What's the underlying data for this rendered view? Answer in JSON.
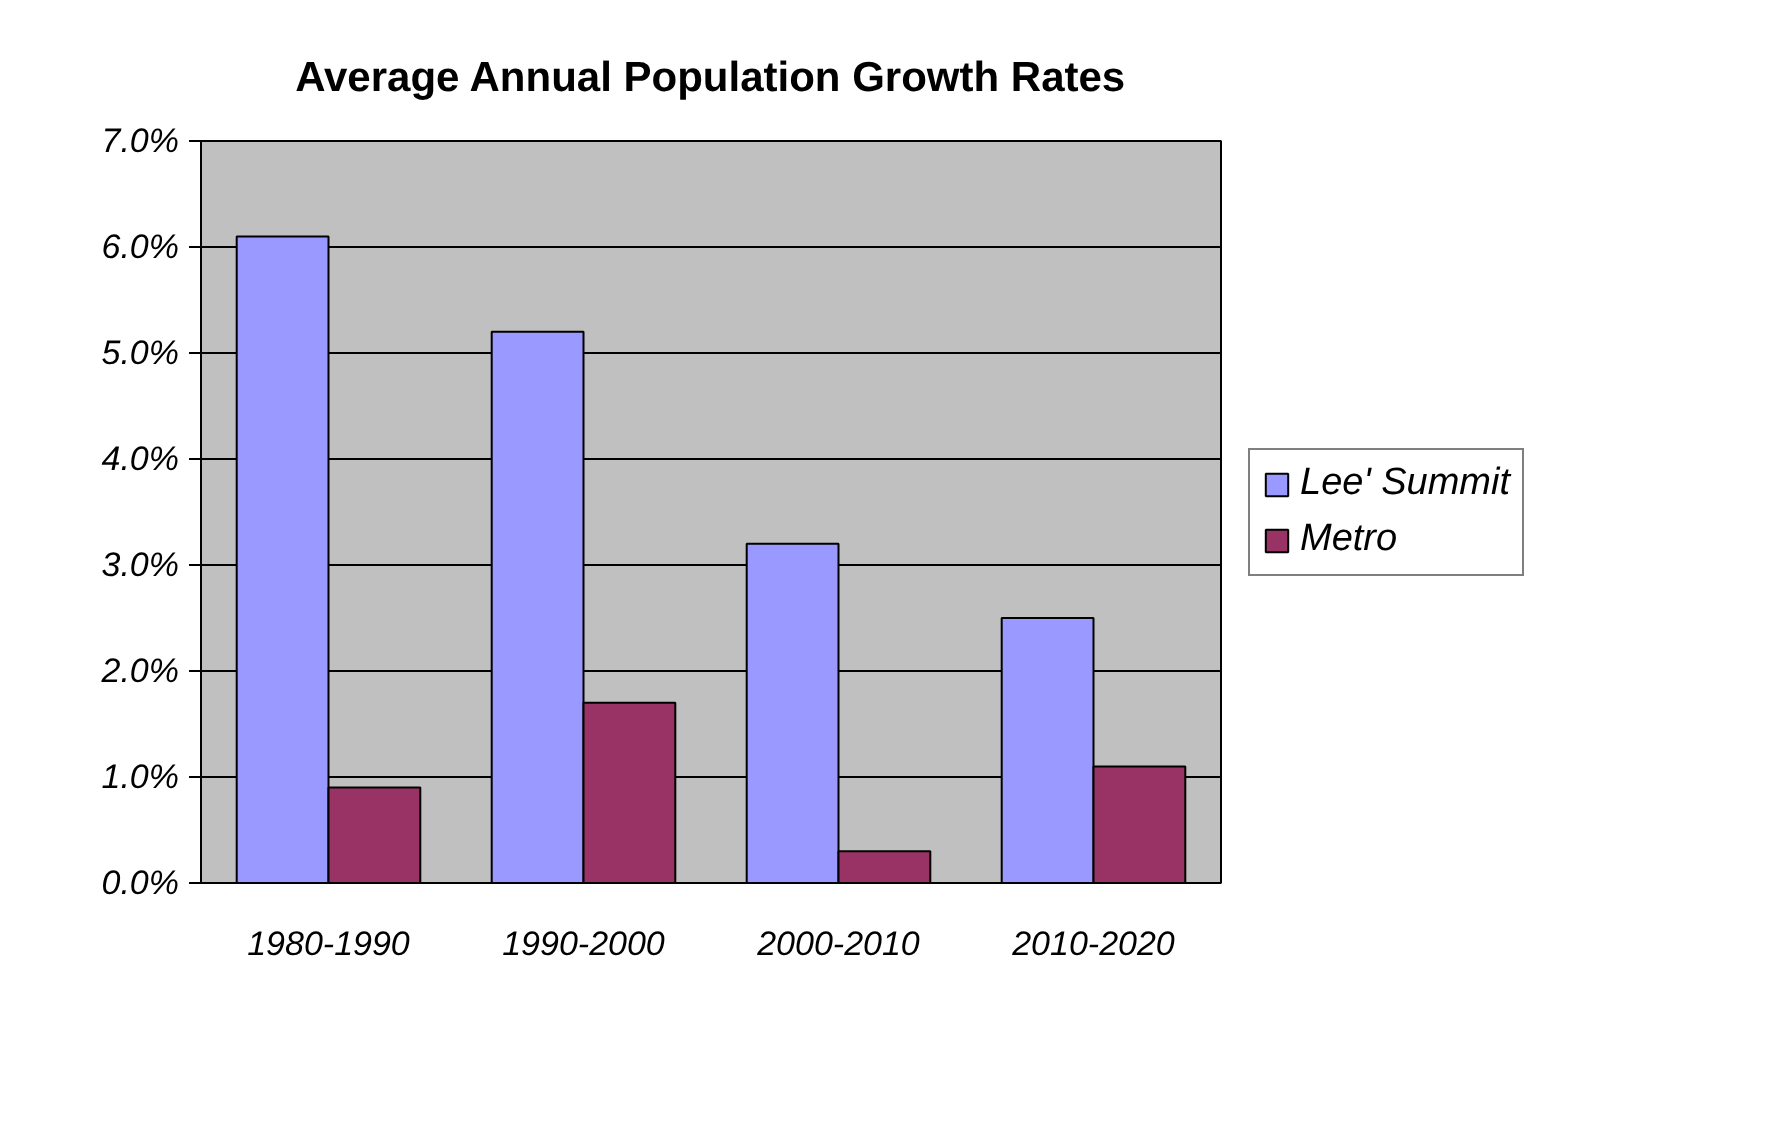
{
  "chart_data": {
    "type": "bar",
    "title": "Average Annual Population Growth Rates",
    "categories": [
      "1980-1990",
      "1990-2000",
      "2000-2010",
      "2010-2020"
    ],
    "series": [
      {
        "name": "Lee' Summit",
        "color": "#9999ff",
        "values": [
          6.1,
          5.2,
          3.2,
          2.5
        ]
      },
      {
        "name": "Metro",
        "color": "#993366",
        "values": [
          0.9,
          1.7,
          0.3,
          1.1
        ]
      }
    ],
    "ylim": [
      0,
      7
    ],
    "yticks": [
      {
        "value": 0,
        "label": "0.0%"
      },
      {
        "value": 1,
        "label": "1.0%"
      },
      {
        "value": 2,
        "label": "2.0%"
      },
      {
        "value": 3,
        "label": "3.0%"
      },
      {
        "value": 4,
        "label": "4.0%"
      },
      {
        "value": 5,
        "label": "5.0%"
      },
      {
        "value": 6,
        "label": "6.0%"
      },
      {
        "value": 7,
        "label": "7.0%"
      }
    ],
    "grid": "y",
    "legend": "right"
  }
}
